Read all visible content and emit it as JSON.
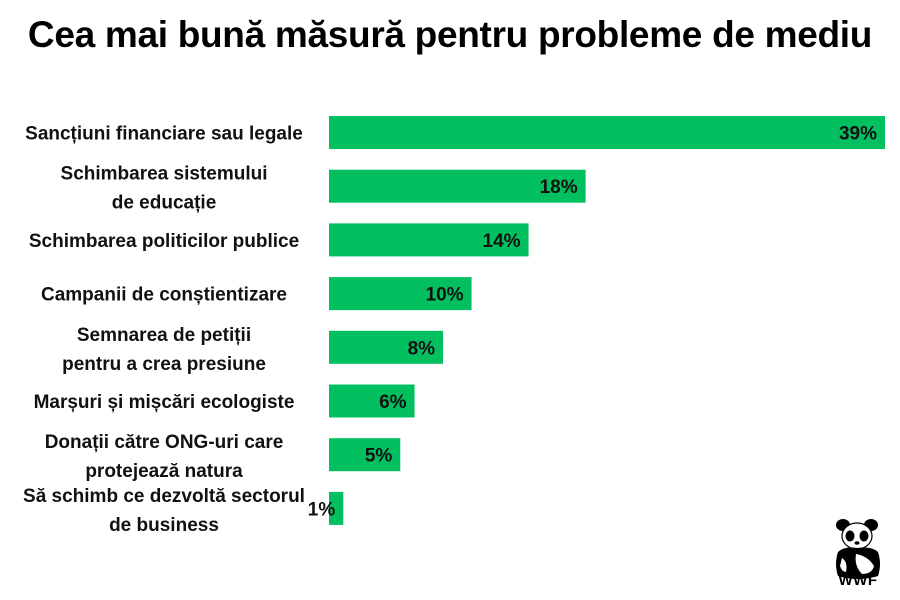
{
  "chart_data": {
    "type": "bar",
    "orientation": "horizontal",
    "title": "Cea mai bună măsură pentru probleme de mediu",
    "categories": [
      [
        "Sancțiuni financiare sau legale"
      ],
      [
        "Schimbarea sistemului",
        "de educație"
      ],
      [
        "Schimbarea politicilor publice"
      ],
      [
        "Campanii de conștientizare"
      ],
      [
        "Semnarea de petiții",
        "pentru a crea presiune"
      ],
      [
        "Marșuri și mișcări ecologiste"
      ],
      [
        "Donații către ONG-uri care",
        "protejează natura"
      ],
      [
        "Să schimb ce dezvoltă sectorul",
        "de business"
      ]
    ],
    "values": [
      39,
      18,
      14,
      10,
      8,
      6,
      5,
      1
    ],
    "value_labels": [
      "39%",
      "18%",
      "14%",
      "10%",
      "8%",
      "6%",
      "5%",
      "1%"
    ],
    "unit": "%",
    "color": "#02c05f",
    "grid": false,
    "xlabel": "",
    "ylabel": ""
  },
  "logo": {
    "text": "WWF"
  }
}
